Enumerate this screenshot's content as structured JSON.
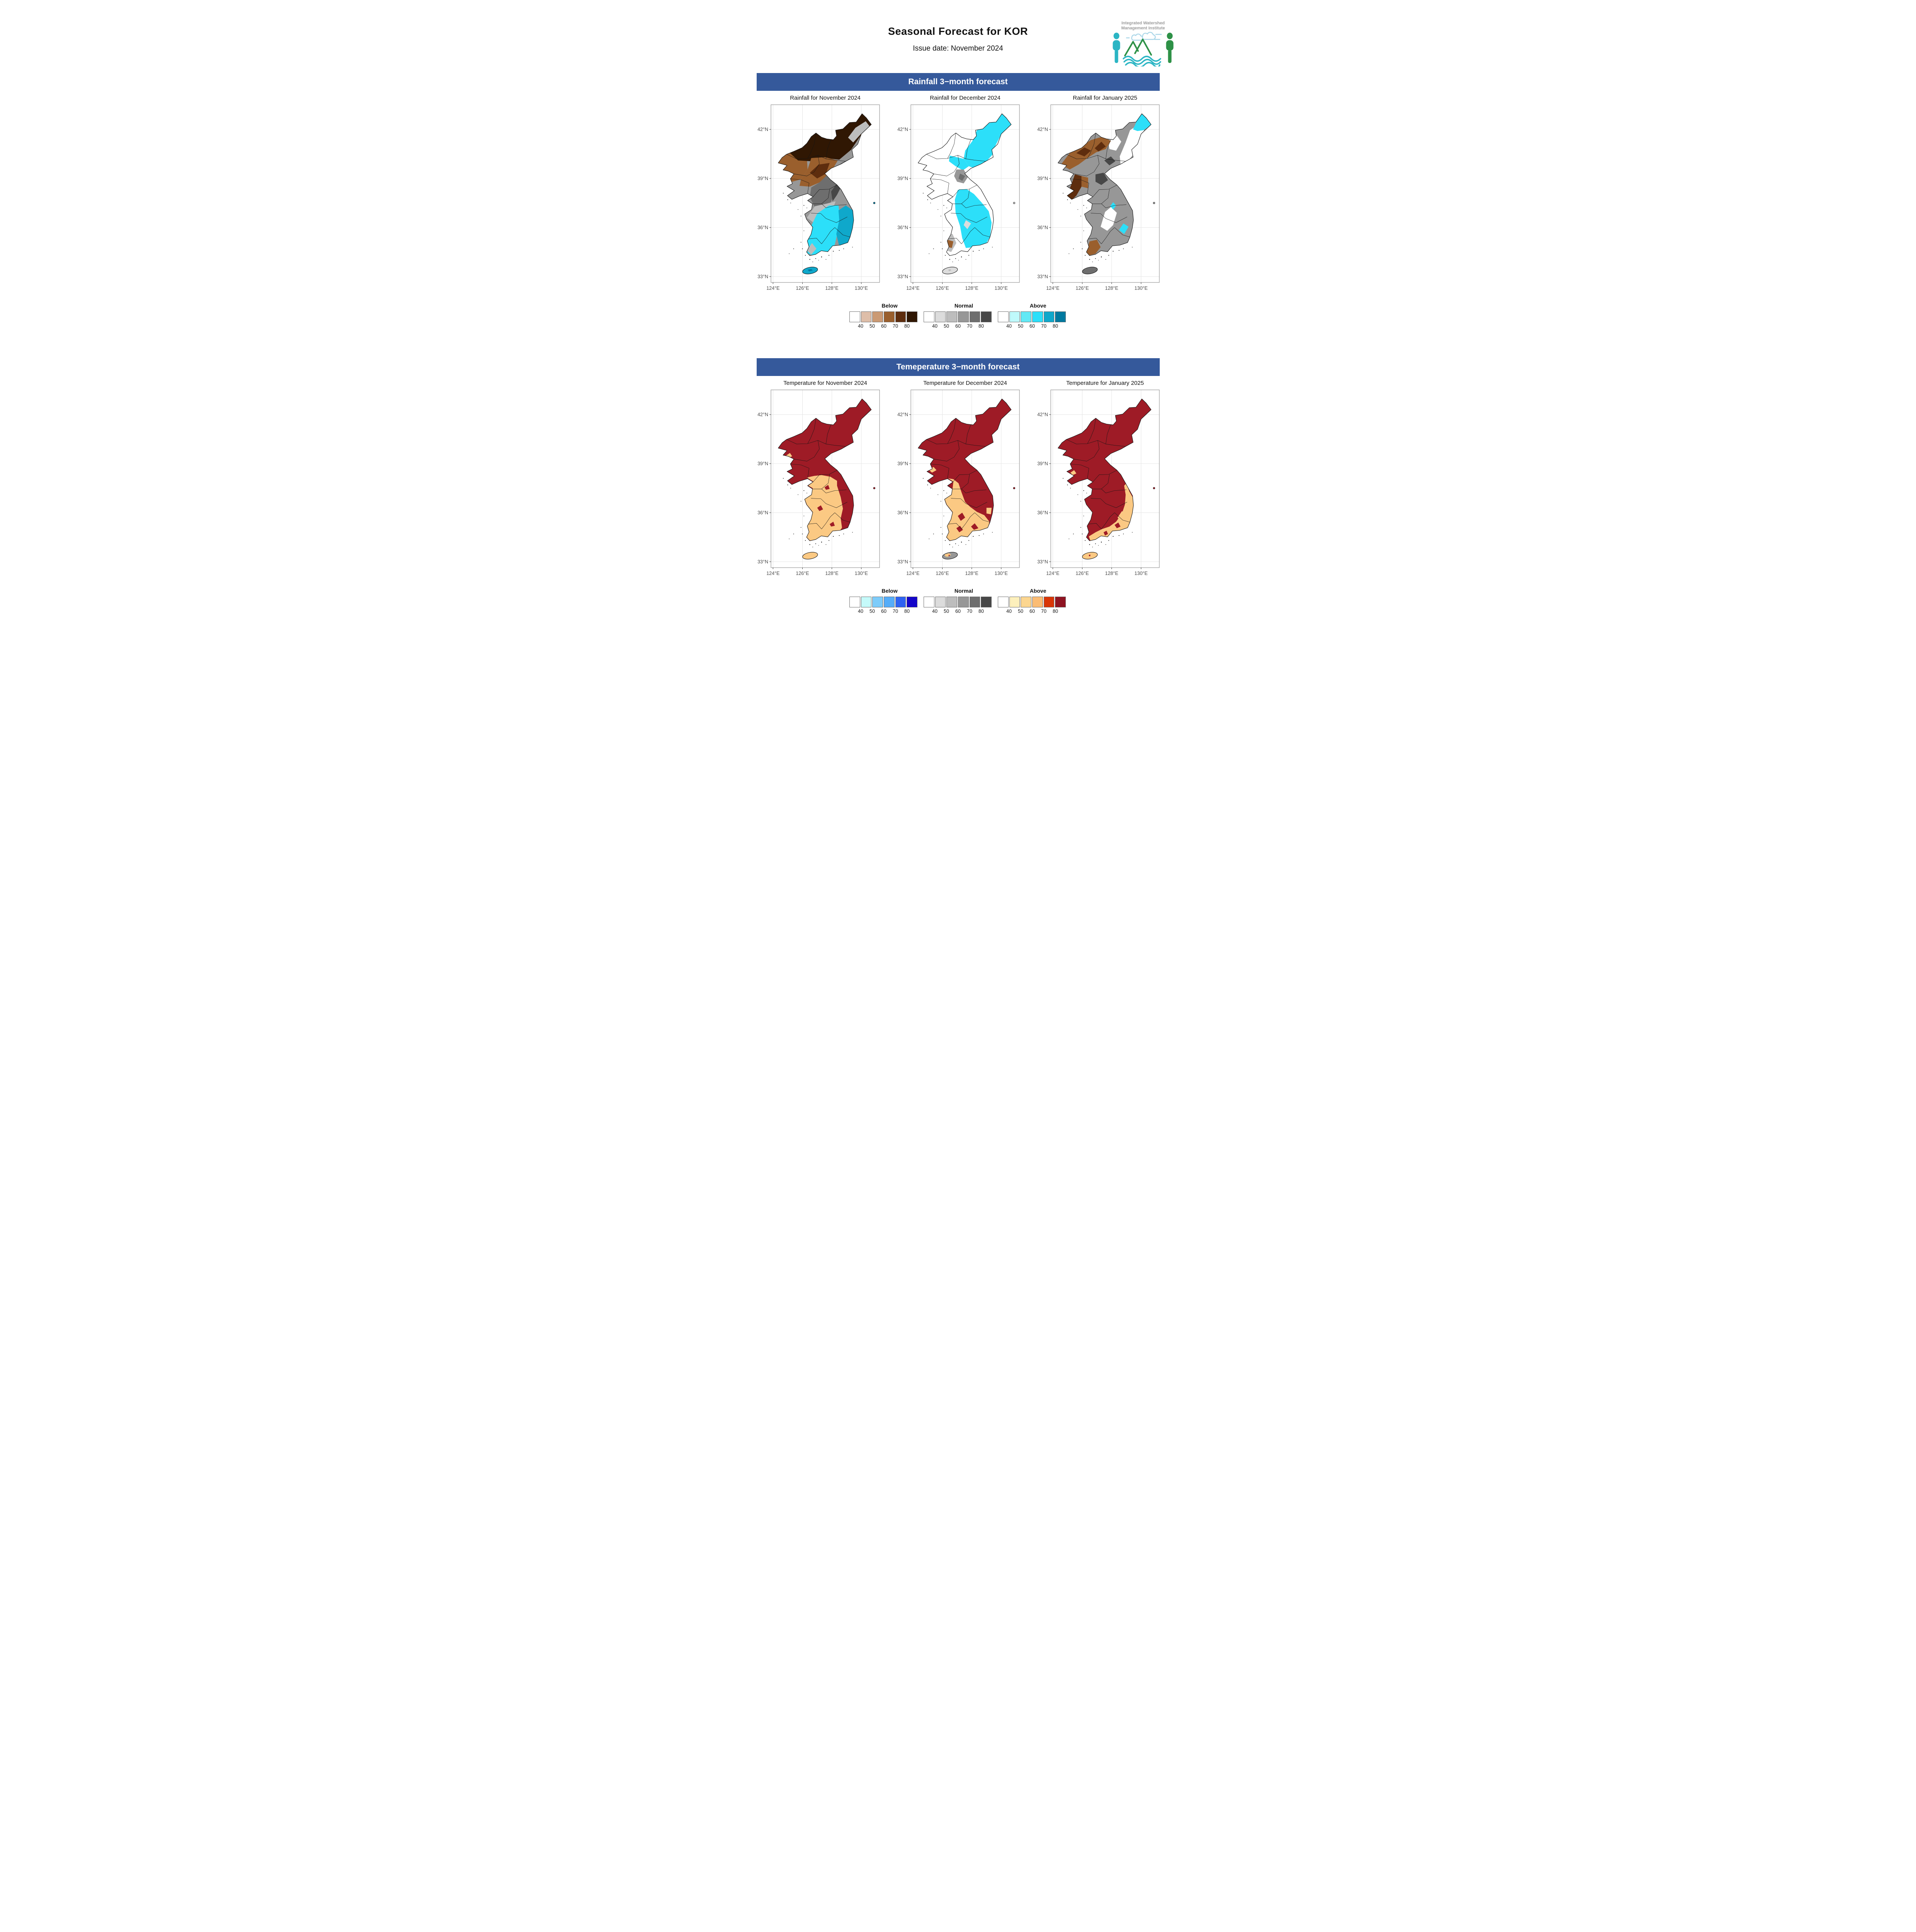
{
  "header": {
    "title": "Seasonal Forecast for KOR",
    "subtitle": "Issue date: November 2024",
    "logo": {
      "name_line1": "Integrated Watershed",
      "name_line2": "Management Institute"
    }
  },
  "sections": [
    {
      "banner": "Rainfall 3−month forecast",
      "maps": [
        {
          "title": "Rainfall for November 2024"
        },
        {
          "title": "Rainfall for December 2024"
        },
        {
          "title": "Rainfall for January 2025"
        }
      ],
      "legend_palette": "rainfall_palettes"
    },
    {
      "banner": "Temeperature 3−month forecast",
      "maps": [
        {
          "title": "Temperature for November 2024"
        },
        {
          "title": "Temperature for December 2024"
        },
        {
          "title": "Temperature for January 2025"
        }
      ],
      "legend_palette": "temperature_palettes"
    }
  ],
  "axes": {
    "y_ticks": [
      "42°N",
      "39°N",
      "36°N",
      "33°N"
    ],
    "x_ticks": [
      "124°E",
      "126°E",
      "128°E",
      "130°E"
    ]
  },
  "legend": {
    "group_labels": [
      "Below",
      "Normal",
      "Above"
    ],
    "values": [
      "40",
      "50",
      "60",
      "70",
      "80"
    ],
    "rainfall_palettes": {
      "Below": [
        "#FFFFFF",
        "#DEBEA9",
        "#CB9A74",
        "#9A5F2D",
        "#5E2D0E",
        "#301703"
      ],
      "Normal": [
        "#FFFFFF",
        "#DCDCDC",
        "#BDBDBD",
        "#979797",
        "#6E6E6E",
        "#474747"
      ],
      "Above": [
        "#FFFFFF",
        "#BFF9FB",
        "#62E9F5",
        "#2CDFF9",
        "#0FA8CB",
        "#00799F"
      ]
    },
    "temperature_palettes": {
      "Below": [
        "#FFFFFF",
        "#C5FAFA",
        "#7DCCFA",
        "#55ADF9",
        "#2E62F2",
        "#1405C9"
      ],
      "Normal": [
        "#FFFFFF",
        "#DCDCDC",
        "#BDBDBD",
        "#979797",
        "#6E6E6E",
        "#474747"
      ],
      "Above": [
        "#FFFFFF",
        "#FDF0BC",
        "#FCD690",
        "#FBBC74",
        "#D93607",
        "#8F1422"
      ]
    }
  },
  "colors": {
    "banner_bg": "#35599B",
    "banner_text": "#FFFFFF",
    "map_red": "#9E1B26",
    "map_orange": "#FBC983",
    "map_cyan": "#2CDFF9",
    "map_teal": "#0FA8CB",
    "map_deep_teal": "#00799F",
    "grid_line": "#E4E4E4",
    "panel_border": "#808080",
    "axis_text": "#4a4a4a",
    "logo_teal": "#2BB5C4",
    "logo_green": "#2E9147",
    "logo_text_gray": "#9B9B9B",
    "logo_cloud_blue": "#A9D6E8"
  }
}
